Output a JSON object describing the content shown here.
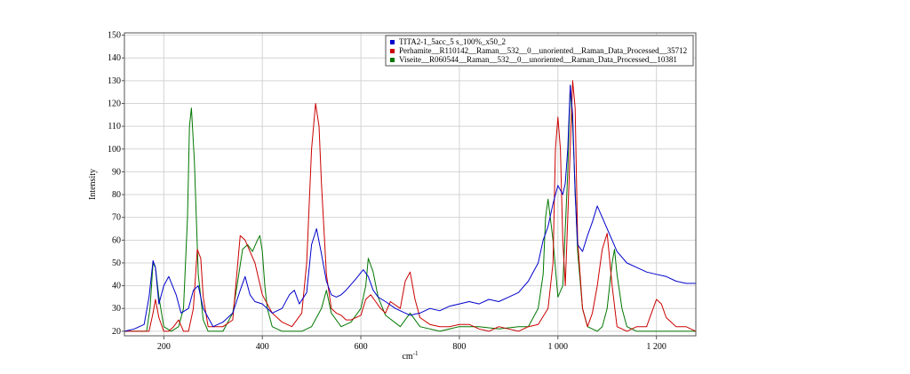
{
  "chart_data": {
    "type": "line",
    "xlabel": "cm",
    "xlabel_superscript": "-1",
    "ylabel": "Intensity",
    "xlim": [
      120,
      1280
    ],
    "ylim": [
      18,
      151
    ],
    "x_ticks": [
      200,
      400,
      600,
      800,
      1000,
      1200
    ],
    "x_tick_labels": [
      "200",
      "400",
      "600",
      "800",
      "1 000",
      "1 200"
    ],
    "y_ticks": [
      20,
      30,
      40,
      50,
      60,
      70,
      80,
      90,
      100,
      110,
      120,
      130,
      140,
      150
    ],
    "grid": true,
    "legend_position": "top-right",
    "series": [
      {
        "name": "TITA2-1_5acc_5 s_100%_x50_2",
        "color": "#0000cc",
        "x": [
          120,
          140,
          160,
          170,
          178,
          183,
          190,
          200,
          210,
          225,
          235,
          250,
          260,
          270,
          280,
          300,
          320,
          340,
          355,
          365,
          375,
          385,
          400,
          420,
          440,
          455,
          465,
          475,
          490,
          500,
          510,
          520,
          530,
          540,
          550,
          560,
          570,
          590,
          605,
          615,
          625,
          635,
          650,
          670,
          690,
          700,
          720,
          740,
          760,
          780,
          800,
          820,
          840,
          860,
          880,
          900,
          920,
          940,
          960,
          970,
          980,
          990,
          1000,
          1010,
          1015,
          1020,
          1025,
          1030,
          1035,
          1040,
          1050,
          1060,
          1070,
          1080,
          1090,
          1100,
          1110,
          1120,
          1140,
          1160,
          1180,
          1200,
          1220,
          1240,
          1260,
          1280
        ],
        "y": [
          20,
          21,
          23,
          35,
          51,
          48,
          32,
          40,
          44,
          36,
          28,
          30,
          38,
          40,
          30,
          22,
          24,
          28,
          38,
          44,
          36,
          33,
          32,
          28,
          30,
          36,
          38,
          32,
          37,
          58,
          65,
          54,
          42,
          36,
          35,
          36,
          38,
          43,
          47,
          44,
          38,
          35,
          33,
          30,
          28,
          27,
          28,
          30,
          29,
          31,
          32,
          33,
          32,
          34,
          33,
          35,
          37,
          42,
          50,
          60,
          66,
          76,
          84,
          80,
          85,
          100,
          128,
          115,
          80,
          58,
          55,
          62,
          68,
          75,
          70,
          65,
          60,
          55,
          50,
          48,
          46,
          45,
          44,
          42,
          41,
          41
        ]
      },
      {
        "name": "Perhamite__R110142__Raman__532__0__unoriented__Raman_Data_Processed__35712",
        "color": "#cc0000",
        "x": [
          120,
          170,
          178,
          183,
          190,
          200,
          210,
          220,
          230,
          240,
          250,
          260,
          268,
          275,
          280,
          290,
          300,
          320,
          340,
          355,
          365,
          375,
          385,
          400,
          420,
          440,
          460,
          470,
          480,
          490,
          500,
          508,
          515,
          520,
          530,
          540,
          550,
          560,
          570,
          580,
          600,
          610,
          620,
          630,
          640,
          650,
          660,
          680,
          690,
          700,
          710,
          720,
          740,
          760,
          780,
          800,
          820,
          840,
          860,
          880,
          900,
          920,
          940,
          960,
          980,
          990,
          995,
          1000,
          1005,
          1010,
          1015,
          1020,
          1030,
          1035,
          1040,
          1050,
          1060,
          1070,
          1080,
          1090,
          1100,
          1110,
          1120,
          1140,
          1160,
          1180,
          1190,
          1200,
          1210,
          1220,
          1240,
          1260,
          1280
        ],
        "y": [
          20,
          20,
          28,
          34,
          26,
          20,
          20,
          22,
          25,
          20,
          20,
          30,
          56,
          52,
          35,
          22,
          22,
          22,
          25,
          62,
          60,
          55,
          50,
          36,
          28,
          24,
          22,
          25,
          28,
          50,
          100,
          120,
          110,
          85,
          45,
          30,
          28,
          27,
          25,
          25,
          27,
          34,
          36,
          33,
          30,
          28,
          33,
          30,
          42,
          46,
          34,
          26,
          23,
          22,
          22,
          23,
          23,
          21,
          20,
          22,
          21,
          20,
          22,
          23,
          30,
          50,
          100,
          114,
          100,
          60,
          40,
          70,
          130,
          118,
          60,
          30,
          22,
          28,
          40,
          56,
          63,
          40,
          22,
          20,
          22,
          22,
          28,
          34,
          32,
          26,
          22,
          22,
          20
        ]
      },
      {
        "name": "Viseite__R060544__Raman__532__0__unoriented__Raman_Data_Processed__10381",
        "color": "#007700",
        "x": [
          120,
          165,
          172,
          178,
          183,
          190,
          200,
          215,
          230,
          240,
          248,
          252,
          256,
          262,
          270,
          280,
          290,
          300,
          320,
          340,
          350,
          360,
          370,
          380,
          390,
          395,
          400,
          405,
          410,
          420,
          440,
          460,
          480,
          500,
          520,
          530,
          540,
          560,
          580,
          600,
          610,
          615,
          625,
          635,
          650,
          680,
          700,
          720,
          760,
          800,
          840,
          880,
          920,
          940,
          960,
          970,
          975,
          980,
          990,
          1000,
          1010,
          1020,
          1025,
          1030,
          1040,
          1050,
          1060,
          1070,
          1080,
          1090,
          1100,
          1110,
          1115,
          1120,
          1130,
          1140,
          1160,
          1180,
          1220,
          1260,
          1280
        ],
        "y": [
          20,
          20,
          30,
          50,
          48,
          35,
          22,
          20,
          22,
          30,
          70,
          110,
          118,
          95,
          45,
          25,
          20,
          20,
          20,
          28,
          42,
          56,
          58,
          55,
          60,
          62,
          55,
          40,
          30,
          22,
          20,
          20,
          20,
          22,
          30,
          38,
          28,
          22,
          24,
          30,
          40,
          52,
          46,
          35,
          27,
          22,
          28,
          22,
          20,
          22,
          22,
          21,
          22,
          22,
          30,
          45,
          70,
          78,
          60,
          35,
          40,
          90,
          128,
          110,
          55,
          30,
          22,
          21,
          20,
          22,
          30,
          50,
          56,
          45,
          30,
          22,
          20,
          20,
          20,
          20,
          20
        ]
      }
    ]
  }
}
